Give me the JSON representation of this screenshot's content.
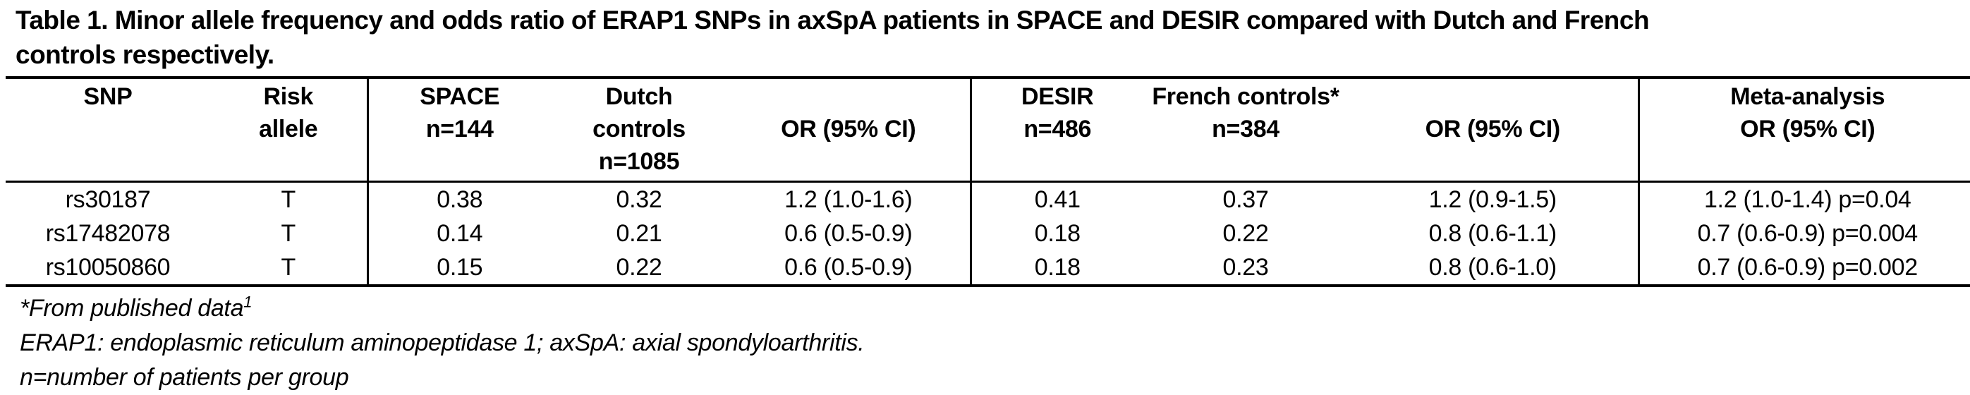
{
  "title_lines": [
    "Table 1. Minor allele frequency and odds ratio of ERAP1 SNPs in axSpA patients in SPACE and DESIR compared with Dutch and French",
    "controls respectively."
  ],
  "table": {
    "columns": [
      {
        "id": "snp",
        "header_lines": [
          "SNP"
        ]
      },
      {
        "id": "risk-allele",
        "header_lines": [
          "Risk",
          "allele"
        ]
      },
      {
        "id": "space",
        "header_lines": [
          "SPACE",
          "n=144"
        ]
      },
      {
        "id": "dutch-controls",
        "header_lines": [
          "Dutch",
          "controls",
          "n=1085"
        ]
      },
      {
        "id": "or-space",
        "header_lines": [
          "",
          "OR (95% CI)"
        ]
      },
      {
        "id": "desir",
        "header_lines": [
          "DESIR",
          "n=486"
        ]
      },
      {
        "id": "french-controls",
        "header_lines": [
          "French controls*",
          "n=384"
        ]
      },
      {
        "id": "or-desir",
        "header_lines": [
          "",
          "OR (95% CI)"
        ]
      },
      {
        "id": "meta-analysis",
        "header_lines": [
          "Meta-analysis",
          "OR (95% CI)"
        ]
      }
    ],
    "rows": [
      [
        "rs30187",
        "T",
        "0.38",
        "0.32",
        "1.2 (1.0-1.6)",
        "0.41",
        "0.37",
        "1.2 (0.9-1.5)",
        "1.2 (1.0-1.4) p=0.04"
      ],
      [
        "rs17482078",
        "T",
        "0.14",
        "0.21",
        "0.6 (0.5-0.9)",
        "0.18",
        "0.22",
        "0.8 (0.6-1.1)",
        "0.7 (0.6-0.9) p=0.004"
      ],
      [
        "rs10050860",
        "T",
        "0.15",
        "0.22",
        "0.6 (0.5-0.9)",
        "0.18",
        "0.23",
        "0.8 (0.6-1.0)",
        "0.7 (0.6-0.9) p=0.002"
      ]
    ]
  },
  "footnotes": [
    {
      "text": "*From published data",
      "sup": "1"
    },
    {
      "text": "ERAP1: endoplasmic reticulum aminopeptidase 1; axSpA: axial spondyloarthritis.",
      "sup": ""
    },
    {
      "text": "n=number of patients per group",
      "sup": ""
    }
  ],
  "colors": {
    "text": "#000000",
    "background": "#ffffff",
    "border": "#000000"
  }
}
